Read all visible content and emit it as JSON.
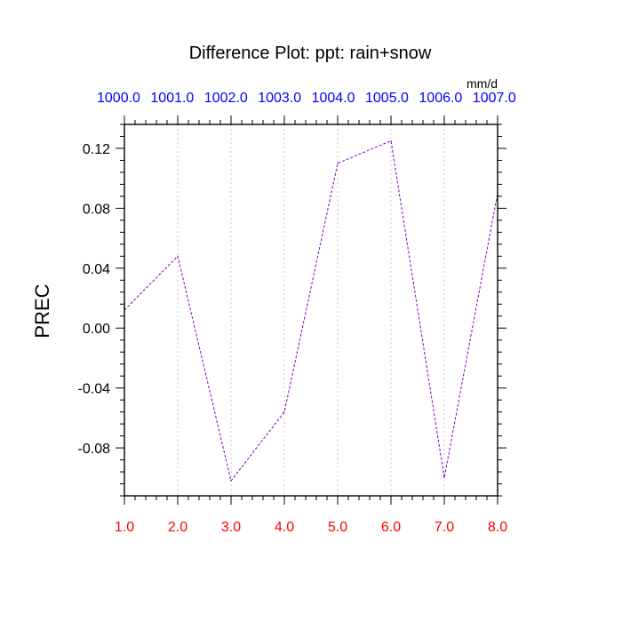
{
  "chart_data": {
    "type": "line",
    "title": "Difference Plot: ppt: rain+snow",
    "units": "mm/d",
    "ylabel": "PREC",
    "xlabel": "",
    "x": [
      1,
      2,
      3,
      4,
      5,
      6,
      7,
      8
    ],
    "series": [
      {
        "values": [
          0.012,
          0.048,
          -0.102,
          -0.056,
          0.11,
          0.125,
          -0.1,
          0.09
        ]
      }
    ],
    "xlim": [
      1,
      8
    ],
    "ylim": [
      -0.112,
      0.136
    ],
    "x_tick_labels": [
      "1.0",
      "2.0",
      "3.0",
      "4.0",
      "5.0",
      "6.0",
      "7.0",
      "8.0"
    ],
    "top_tick_labels": [
      "1000.0",
      "1001.0",
      "1002.0",
      "1003.0",
      "1004.0",
      "1005.0",
      "1006.0",
      "1007.0"
    ],
    "y_ticks": [
      -0.08,
      -0.04,
      0.0,
      0.04,
      0.08,
      0.12
    ],
    "y_tick_labels": [
      "-0.08",
      "-0.04",
      "0.00",
      "0.04",
      "0.08",
      "0.12"
    ],
    "grid": "vertical dotted",
    "colors": {
      "line": "#7a00c8",
      "bottom_ticks": "#ff0000",
      "top_ticks": "#0000ff",
      "grid": "#c8c8c8"
    }
  }
}
